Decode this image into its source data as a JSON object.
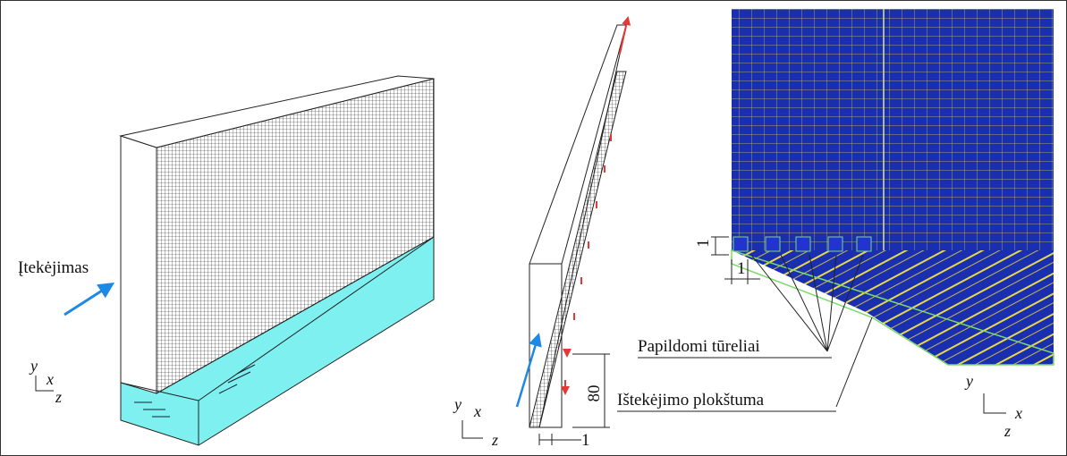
{
  "left": {
    "inflow_label": "Įtekėjimas",
    "axes": {
      "y": "y",
      "x": "x",
      "z": "z"
    }
  },
  "middle": {
    "height_dim": 80,
    "width_dim": 1,
    "axes": {
      "y": "y",
      "x": "x",
      "z": "z"
    }
  },
  "right": {
    "cell_height_dim": 1,
    "cell_width_dim": 1,
    "cells_label": "Papildomi tūreliai",
    "outlet_label": "Ištekėjimo plokštuma",
    "axes": {
      "y": "y",
      "x": "x",
      "z": "z"
    }
  }
}
